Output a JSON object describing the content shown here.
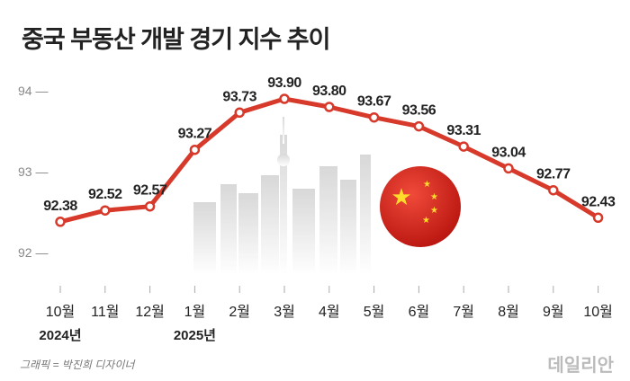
{
  "chart_data": {
    "type": "line",
    "title": "중국 부동산 개발 경기 지수 추이",
    "categories": [
      "10월",
      "11월",
      "12월",
      "1월",
      "2월",
      "3월",
      "4월",
      "5월",
      "6월",
      "7월",
      "8월",
      "9월",
      "10월"
    ],
    "year_labels": [
      {
        "index": 0,
        "label": "2024년"
      },
      {
        "index": 3,
        "label": "2025년"
      }
    ],
    "values": [
      92.38,
      92.52,
      92.57,
      93.27,
      93.73,
      93.9,
      93.8,
      93.67,
      93.56,
      93.31,
      93.04,
      92.77,
      92.43
    ],
    "value_labels": [
      "92.38",
      "92.52",
      "92.57",
      "93.27",
      "93.73",
      "93.90",
      "93.80",
      "93.67",
      "93.56",
      "93.31",
      "93.04",
      "92.77",
      "92.43"
    ],
    "yticks": [
      92,
      93,
      94
    ],
    "ytick_labels": [
      "92 —",
      "93 —",
      "94 —"
    ],
    "ylim": [
      91.6,
      94.2
    ],
    "grid": false,
    "color": "#d7392b"
  },
  "credit": "그래픽 = 박진희 디자이너",
  "logo": "데일리안"
}
